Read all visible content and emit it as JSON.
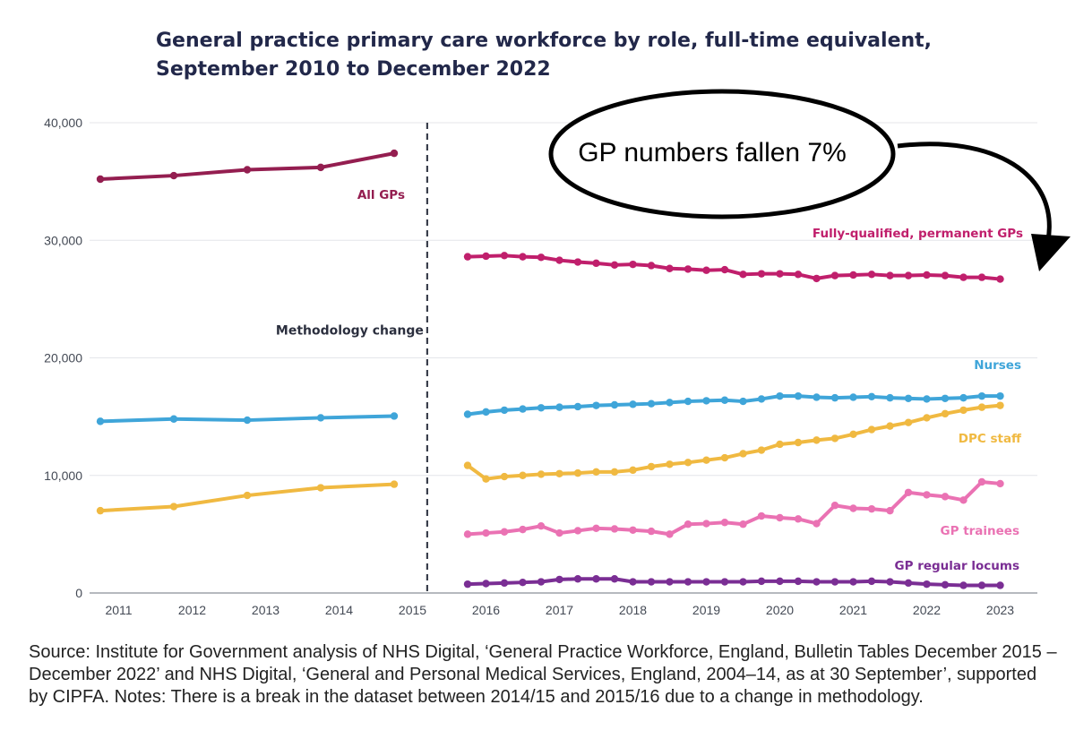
{
  "chart_data": {
    "type": "line",
    "title": "General practice primary care workforce by role, full-time equivalent, September 2010 to December 2022",
    "xlabel": "",
    "ylabel": "",
    "xlim": [
      2010.6,
      2023.0
    ],
    "ylim": [
      0,
      40000
    ],
    "x_ticks": [
      "2011",
      "2012",
      "2013",
      "2014",
      "2015",
      "2016",
      "2017",
      "2018",
      "2019",
      "2020",
      "2021",
      "2022",
      "2023"
    ],
    "y_ticks": [
      "0",
      "10,000",
      "20,000",
      "30,000",
      "40,000"
    ],
    "grid": "horizontal",
    "legend": "labels placed directly on series",
    "annotation": {
      "text": "Methodology change",
      "x": 2015.2
    },
    "callout": {
      "text": "GP numbers fallen 7%"
    },
    "series": [
      {
        "name": "All GPs",
        "color": "#941e50",
        "x": [
          2010.75,
          2011.75,
          2012.75,
          2013.75,
          2014.75
        ],
        "y": [
          35200,
          35500,
          36000,
          36200,
          37400
        ]
      },
      {
        "name": "Fully-qualified, permanent GPs",
        "color": "#c01f6c",
        "x": [
          2015.75,
          2016.0,
          2016.25,
          2016.5,
          2016.75,
          2017.0,
          2017.25,
          2017.5,
          2017.75,
          2018.0,
          2018.25,
          2018.5,
          2018.75,
          2019.0,
          2019.25,
          2019.5,
          2019.75,
          2020.0,
          2020.25,
          2020.5,
          2020.75,
          2021.0,
          2021.25,
          2021.5,
          2021.75,
          2022.0,
          2022.25,
          2022.5,
          2022.75,
          2023.0
        ],
        "y": [
          28600,
          28650,
          28700,
          28600,
          28550,
          28300,
          28150,
          28050,
          27900,
          27950,
          27850,
          27600,
          27550,
          27450,
          27500,
          27100,
          27150,
          27150,
          27100,
          26750,
          27000,
          27050,
          27100,
          27000,
          27000,
          27050,
          27000,
          26850,
          26850,
          26700
        ]
      },
      {
        "name": "Nurses",
        "color": "#3fa5d9",
        "x": [
          2010.75,
          2011.75,
          2012.75,
          2013.75,
          2014.75,
          2015.75,
          2016.0,
          2016.25,
          2016.5,
          2016.75,
          2017.0,
          2017.25,
          2017.5,
          2017.75,
          2018.0,
          2018.25,
          2018.5,
          2018.75,
          2019.0,
          2019.25,
          2019.5,
          2019.75,
          2020.0,
          2020.25,
          2020.5,
          2020.75,
          2021.0,
          2021.25,
          2021.5,
          2021.75,
          2022.0,
          2022.25,
          2022.5,
          2022.75,
          2023.0
        ],
        "y": [
          14600,
          14800,
          14700,
          14900,
          15050,
          15200,
          15400,
          15550,
          15650,
          15750,
          15800,
          15850,
          15950,
          16000,
          16050,
          16100,
          16200,
          16300,
          16350,
          16400,
          16300,
          16500,
          16750,
          16750,
          16650,
          16600,
          16650,
          16700,
          16600,
          16550,
          16500,
          16550,
          16600,
          16750,
          16750
        ]
      },
      {
        "name": "DPC staff",
        "color": "#f0b941",
        "x": [
          2010.75,
          2011.75,
          2012.75,
          2013.75,
          2014.75,
          2015.75,
          2016.0,
          2016.25,
          2016.5,
          2016.75,
          2017.0,
          2017.25,
          2017.5,
          2017.75,
          2018.0,
          2018.25,
          2018.5,
          2018.75,
          2019.0,
          2019.25,
          2019.5,
          2019.75,
          2020.0,
          2020.25,
          2020.5,
          2020.75,
          2021.0,
          2021.25,
          2021.5,
          2021.75,
          2022.0,
          2022.25,
          2022.5,
          2022.75,
          2023.0
        ],
        "y": [
          7000,
          7350,
          8300,
          8950,
          9250,
          10850,
          9700,
          9900,
          10000,
          10100,
          10150,
          10200,
          10300,
          10300,
          10450,
          10750,
          10950,
          11100,
          11300,
          11500,
          11850,
          12150,
          12650,
          12800,
          13000,
          13150,
          13500,
          13900,
          14200,
          14500,
          14900,
          15250,
          15550,
          15800,
          15950
        ]
      },
      {
        "name": "GP trainees",
        "color": "#ea72b3",
        "x": [
          2015.75,
          2016.0,
          2016.25,
          2016.5,
          2016.75,
          2017.0,
          2017.25,
          2017.5,
          2017.75,
          2018.0,
          2018.25,
          2018.5,
          2018.75,
          2019.0,
          2019.25,
          2019.5,
          2019.75,
          2020.0,
          2020.25,
          2020.5,
          2020.75,
          2021.0,
          2021.25,
          2021.5,
          2021.75,
          2022.0,
          2022.25,
          2022.5,
          2022.75,
          2023.0
        ],
        "y": [
          5000,
          5100,
          5200,
          5400,
          5700,
          5100,
          5300,
          5500,
          5450,
          5350,
          5250,
          5000,
          5850,
          5900,
          6000,
          5850,
          6550,
          6400,
          6300,
          5900,
          7450,
          7200,
          7150,
          7000,
          8550,
          8350,
          8200,
          7900,
          9450,
          9300
        ]
      },
      {
        "name": "GP regular locums",
        "color": "#7a2e94",
        "x": [
          2015.75,
          2016.0,
          2016.25,
          2016.5,
          2016.75,
          2017.0,
          2017.25,
          2017.5,
          2017.75,
          2018.0,
          2018.25,
          2018.5,
          2018.75,
          2019.0,
          2019.25,
          2019.5,
          2019.75,
          2020.0,
          2020.25,
          2020.5,
          2020.75,
          2021.0,
          2021.25,
          2021.5,
          2021.75,
          2022.0,
          2022.25,
          2022.5,
          2022.75,
          2023.0
        ],
        "y": [
          750,
          800,
          850,
          900,
          950,
          1150,
          1200,
          1200,
          1200,
          950,
          950,
          950,
          950,
          950,
          950,
          950,
          1000,
          1000,
          1000,
          950,
          950,
          950,
          1000,
          950,
          850,
          750,
          700,
          650,
          650,
          650
        ]
      }
    ]
  },
  "source_note": "Source: Institute for Government analysis of NHS Digital, ‘General Practice Workforce, England, Bulletin Tables December 2015 – December 2022’ and NHS Digital, ‘General and Personal Medical Services, England, 2004–14, as at 30 September’, supported by CIPFA. Notes: There is a break in the dataset between 2014/15 and 2015/16 due to a change in methodology."
}
